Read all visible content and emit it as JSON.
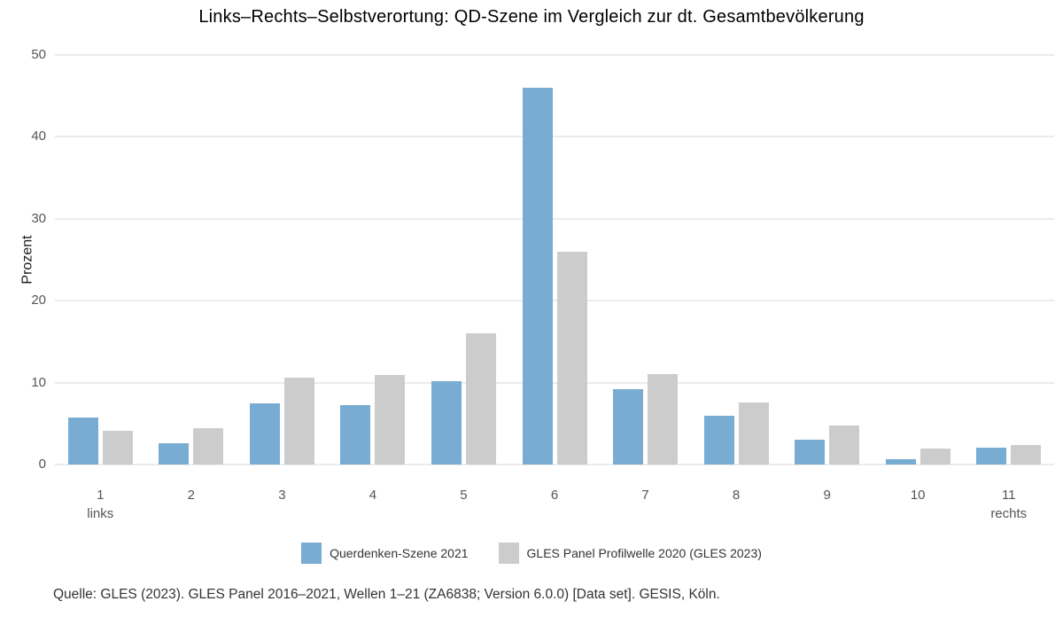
{
  "title": "Links–Rechts–Selbstverortung: QD-Szene im Vergleich zur dt. Gesamtbevölkerung",
  "footer": "Quelle: GLES (2023). GLES Panel 2016–2021, Wellen 1–21 (ZA6838; Version 6.0.0) [Data set]. GESIS, Köln.",
  "colors": {
    "querdenken_blue": "#79acd2",
    "gles_gray": "#cccccc",
    "gridline": "#ececec",
    "tick_text": "#555555",
    "title_text": "#000000"
  },
  "chart_data": {
    "type": "bar",
    "title": "Links–Rechts–Selbstverortung: QD-Szene im Vergleich zur dt. Gesamtbevölkerung",
    "xlabel": "",
    "ylabel": "Prozent",
    "ylim": [
      0,
      50
    ],
    "yticks": [
      0,
      10,
      20,
      30,
      40,
      50
    ],
    "grid": true,
    "legend_position": "bottom",
    "categories": [
      "1",
      "2",
      "3",
      "4",
      "5",
      "6",
      "7",
      "8",
      "9",
      "10",
      "11"
    ],
    "category_sublabels": [
      "links",
      "",
      "",
      "",
      "",
      "",
      "",
      "",
      "",
      "",
      "rechts"
    ],
    "series": [
      {
        "name": "Querdenken-Szene 2021",
        "color": "#79acd2",
        "values": [
          5.7,
          2.6,
          7.5,
          7.3,
          10.2,
          46.0,
          9.2,
          6.0,
          3.0,
          0.6,
          2.1
        ]
      },
      {
        "name": "GLES Panel Profilwelle 2020 (GLES 2023)",
        "color": "#cccccc",
        "values": [
          4.1,
          4.4,
          10.6,
          10.9,
          16.0,
          26.0,
          11.0,
          7.6,
          4.8,
          2.0,
          2.4
        ]
      }
    ]
  }
}
